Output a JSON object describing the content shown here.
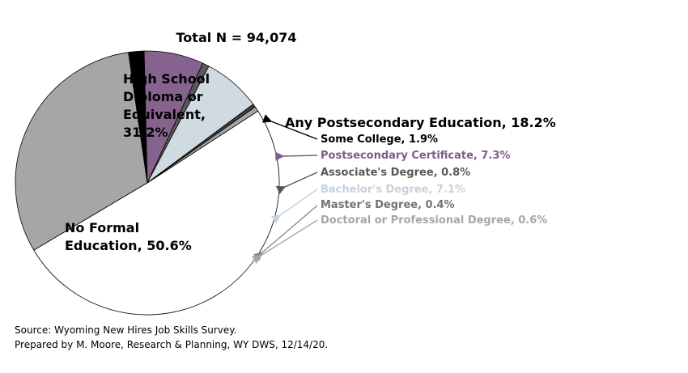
{
  "chart_data": {
    "type": "pie",
    "title": "Total N = 94,074",
    "slices": [
      {
        "label": "No Formal Education, 50.6%",
        "value": 50.6,
        "color": "#ffffff"
      },
      {
        "label": "High School Diploma or Equivalent, 31.2%",
        "value": 31.2,
        "color": "#a6a6a6"
      },
      {
        "label": "Some College, 1.9%",
        "value": 1.9,
        "color": "#000000"
      },
      {
        "label": "Postsecondary Certificate, 7.3%",
        "value": 7.3,
        "color": "#86628f"
      },
      {
        "label": "Associate's Degree, 0.8%",
        "value": 0.8,
        "color": "#595959"
      },
      {
        "label": "Bachelor's Degree, 7.1%",
        "value": 7.1,
        "color": "#d0dae1"
      },
      {
        "label": "Master's Degree, 0.4%",
        "value": 0.4,
        "color": "#404040"
      },
      {
        "label": "Doctoral or Professional Degree, 0.6%",
        "value": 0.6,
        "color": "#a6a6a6"
      }
    ],
    "group_label": "Any Postsecondary Education, 18.2%",
    "inner_labels": {
      "high_school": [
        "High School",
        "Diploma or",
        "Equivalent,",
        "31.2%"
      ],
      "no_formal": [
        "No Formal",
        "Education, 50.6%"
      ]
    },
    "label_colors": {
      "some_college": "#000000",
      "certificate": "#7f5a8a",
      "associate": "#595959",
      "bachelor": "#c5d1dc",
      "master": "#737373",
      "doctoral": "#a6a6a6"
    }
  },
  "source": {
    "line1": "Source: Wyoming New Hires Job Skills Survey.",
    "line2": "Prepared by M. Moore, Research & Planning, WY DWS, 12/14/20."
  }
}
